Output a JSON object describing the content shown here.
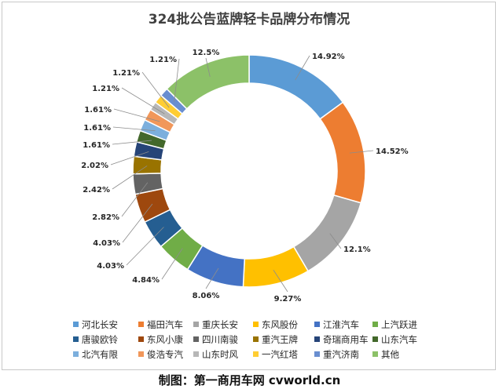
{
  "chart_data": {
    "type": "pie",
    "subtype": "donut",
    "title": "324批公告蓝牌轻卡品牌分布情况",
    "legend_position": "bottom",
    "slices": [
      {
        "name": "河北长安",
        "value": 14.92,
        "label": "14.92%",
        "color": "#5b9bd5"
      },
      {
        "name": "福田汽车",
        "value": 14.52,
        "label": "14.52%",
        "color": "#ed7d31"
      },
      {
        "name": "重庆长安",
        "value": 12.1,
        "label": "12.1%",
        "color": "#a5a5a5"
      },
      {
        "name": "东风股份",
        "value": 9.27,
        "label": "9.27%",
        "color": "#ffc000"
      },
      {
        "name": "江淮汽车",
        "value": 8.06,
        "label": "8.06%",
        "color": "#4472c4"
      },
      {
        "name": "上汽跃进",
        "value": 4.84,
        "label": "4.84%",
        "color": "#70ad47"
      },
      {
        "name": "唐骏欧铃",
        "value": 4.03,
        "label": "4.03%",
        "color": "#255e91"
      },
      {
        "name": "东风小康",
        "value": 4.03,
        "label": "4.03%",
        "color": "#9e480e"
      },
      {
        "name": "四川南骏",
        "value": 2.82,
        "label": "2.82%",
        "color": "#636363"
      },
      {
        "name": "重汽王牌",
        "value": 2.42,
        "label": "2.42%",
        "color": "#997300"
      },
      {
        "name": "奇瑞商用车",
        "value": 2.02,
        "label": "2.02%",
        "color": "#264478"
      },
      {
        "name": "山东汽车",
        "value": 1.61,
        "label": "1.61%",
        "color": "#43682b"
      },
      {
        "name": "北汽有限",
        "value": 1.61,
        "label": "1.61%",
        "color": "#7cafdd"
      },
      {
        "name": "俊浩专汽",
        "value": 1.61,
        "label": "1.61%",
        "color": "#f1975a"
      },
      {
        "name": "山东时风",
        "value": 1.21,
        "label": "1.21%",
        "color": "#b7b7b7"
      },
      {
        "name": "一汽红塔",
        "value": 1.21,
        "label": "1.21%",
        "color": "#ffcd33"
      },
      {
        "name": "重汽济南",
        "value": 1.21,
        "label": "1.21%",
        "color": "#698ed0"
      },
      {
        "name": "其他",
        "value": 12.5,
        "label": "12.5%",
        "color": "#8cc168"
      }
    ]
  },
  "footer": {
    "text": "制图：第一商用车网 cvworld.cn"
  }
}
